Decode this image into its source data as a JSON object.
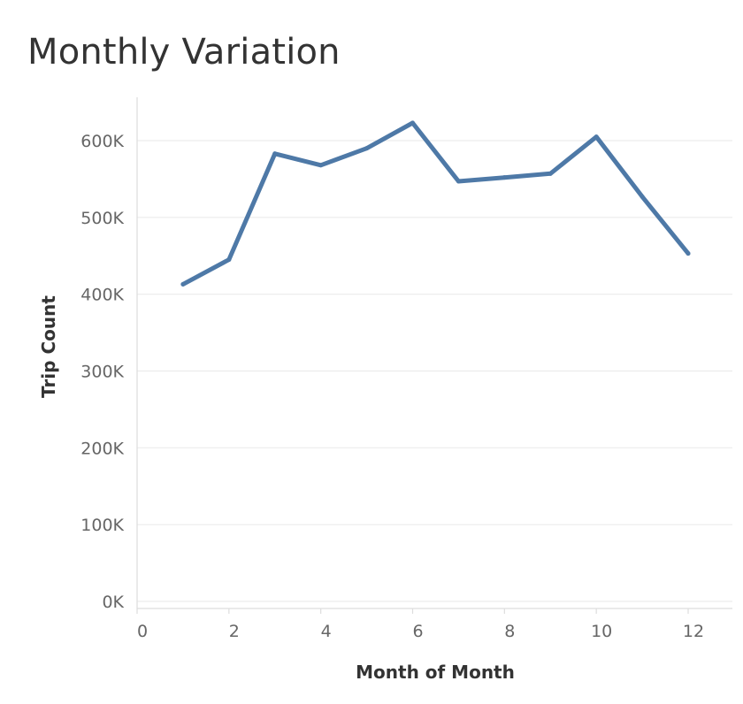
{
  "chart_data": {
    "type": "line",
    "title": "Monthly Variation",
    "xlabel": "Month of Month",
    "ylabel": "Trip Count",
    "x": [
      1,
      2,
      3,
      4,
      5,
      6,
      7,
      8,
      9,
      10,
      11,
      12
    ],
    "series": [
      {
        "values": [
          413000,
          445000,
          583000,
          568000,
          590000,
          623000,
          547000,
          552000,
          557000,
          605000,
          527000,
          453000
        ]
      }
    ],
    "xlim": [
      0,
      13
    ],
    "ylim": [
      0,
      650000
    ],
    "xticks": [
      0,
      2,
      4,
      6,
      8,
      10,
      12
    ],
    "xtick_labels": [
      "0",
      "2",
      "4",
      "6",
      "8",
      "10",
      "12"
    ],
    "yticks": [
      0,
      100000,
      200000,
      300000,
      400000,
      500000,
      600000
    ],
    "ytick_labels": [
      "0K",
      "100K",
      "200K",
      "300K",
      "400K",
      "500K",
      "600K"
    ],
    "grid": "horizontal",
    "legend": "none",
    "line_color": "#4e79a7"
  }
}
